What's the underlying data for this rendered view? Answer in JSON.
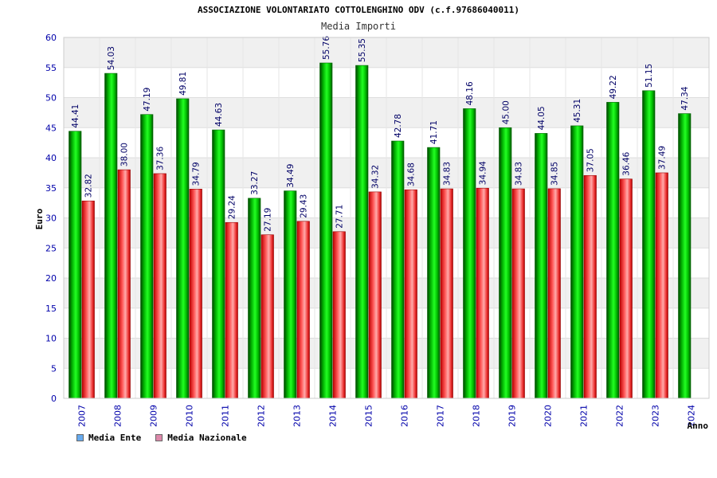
{
  "header": {
    "title": "ASSOCIAZIONE VOLONTARIATO COTTOLENGHINO ODV (c.f.97686040011)",
    "subtitle": "Media Importi"
  },
  "chart_data": {
    "type": "bar",
    "title": "ASSOCIAZIONE VOLONTARIATO COTTOLENGHINO ODV (c.f.97686040011)",
    "subtitle": "Media Importi",
    "xlabel": "Anno",
    "ylabel": "Euro",
    "ylim": [
      0,
      60
    ],
    "yticks": [
      0,
      5,
      10,
      15,
      20,
      25,
      30,
      35,
      40,
      45,
      50,
      55,
      60
    ],
    "grid": true,
    "legend_position": "bottom-left",
    "categories": [
      "2007",
      "2008",
      "2009",
      "2010",
      "2011",
      "2012",
      "2013",
      "2014",
      "2015",
      "2016",
      "2017",
      "2018",
      "2019",
      "2020",
      "2021",
      "2022",
      "2023",
      "2024"
    ],
    "series": [
      {
        "name": "Media Ente",
        "color": "#00cc00",
        "values": [
          44.41,
          54.03,
          47.19,
          49.81,
          44.63,
          33.27,
          34.49,
          55.76,
          55.35,
          42.78,
          41.71,
          48.16,
          45.0,
          44.05,
          45.31,
          49.22,
          51.15,
          47.34
        ],
        "labels": [
          "44.41",
          "54.03",
          "47.19",
          "49.81",
          "44.63",
          "33.27",
          "34.49",
          "55.76",
          "55.35",
          "42.78",
          "41.71",
          "48.16",
          "45.00",
          "44.05",
          "45.31",
          "49.22",
          "51.15",
          "47.34"
        ]
      },
      {
        "name": "Media Nazionale",
        "color": "#ee2222",
        "values": [
          32.82,
          38.0,
          37.36,
          34.79,
          29.24,
          27.19,
          29.43,
          27.71,
          34.32,
          34.68,
          34.83,
          34.94,
          34.83,
          34.85,
          37.05,
          36.46,
          37.49,
          null
        ],
        "labels": [
          "32.82",
          "38.00",
          "37.36",
          "34.79",
          "29.24",
          "27.19",
          "29.43",
          "27.71",
          "34.32",
          "34.68",
          "34.83",
          "34.94",
          "34.83",
          "34.85",
          "37.05",
          "36.46",
          "37.49",
          ""
        ]
      }
    ]
  },
  "legend": {
    "items": [
      {
        "label": "Media Ente",
        "color": "#66aaee"
      },
      {
        "label": "Media Nazionale",
        "color": "#dd88aa"
      }
    ]
  }
}
